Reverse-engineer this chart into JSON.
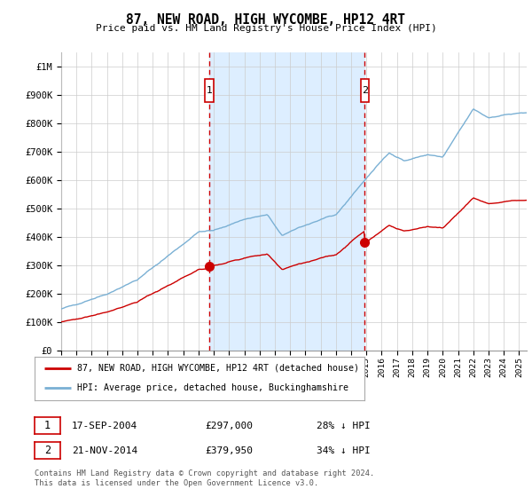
{
  "title": "87, NEW ROAD, HIGH WYCOMBE, HP12 4RT",
  "subtitle": "Price paid vs. HM Land Registry's House Price Index (HPI)",
  "legend_line1": "87, NEW ROAD, HIGH WYCOMBE, HP12 4RT (detached house)",
  "legend_line2": "HPI: Average price, detached house, Buckinghamshire",
  "annotation1_date": "17-SEP-2004",
  "annotation1_price": "£297,000",
  "annotation1_hpi": "28% ↓ HPI",
  "annotation2_date": "21-NOV-2014",
  "annotation2_price": "£379,950",
  "annotation2_hpi": "34% ↓ HPI",
  "footer": "Contains HM Land Registry data © Crown copyright and database right 2024.\nThis data is licensed under the Open Government Licence v3.0.",
  "red_color": "#cc0000",
  "blue_color": "#7ab0d4",
  "shade_color": "#ddeeff",
  "grid_color": "#cccccc",
  "background_color": "#ffffff",
  "vline_color": "#cc0000",
  "marker1_x_year": 2004.72,
  "marker1_y": 297000,
  "marker2_x_year": 2014.89,
  "marker2_y": 379950,
  "vline1_x": 2004.72,
  "vline2_x": 2014.89,
  "ylim": [
    0,
    1050000
  ],
  "xlim_start": 1995.0,
  "xlim_end": 2025.5
}
